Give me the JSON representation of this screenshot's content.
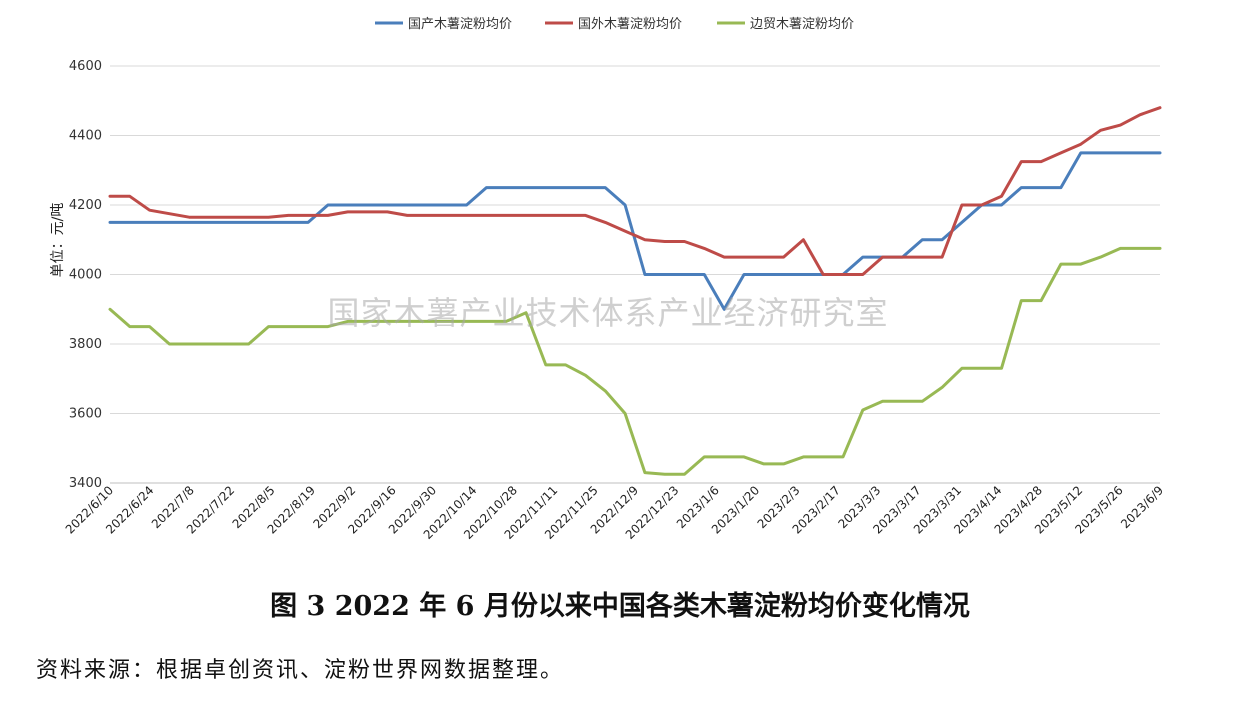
{
  "caption": "图 3   2022 年 6 月份以来中国各类木薯淀粉均价变化情况",
  "source_note": "资料来源：根据卓创资讯、淀粉世界网数据整理。",
  "watermark": "国家木薯产业技术体系产业经济研究室",
  "chart_data": {
    "type": "line",
    "title": "",
    "xlabel": "",
    "ylabel": "单位：元/吨",
    "ylim": [
      3400,
      4600
    ],
    "yticks": [
      3400,
      3600,
      3800,
      4000,
      4200,
      4400,
      4600
    ],
    "grid": "horizontal",
    "legend_position": "top",
    "x_tick_labels": [
      "2022/6/10",
      "2022/6/24",
      "2022/7/8",
      "2022/7/22",
      "2022/8/5",
      "2022/8/19",
      "2022/9/2",
      "2022/9/16",
      "2022/9/30",
      "2022/10/14",
      "2022/10/28",
      "2022/11/11",
      "2022/11/25",
      "2022/12/9",
      "2022/12/23",
      "2023/1/6",
      "2023/1/20",
      "2023/2/3",
      "2023/2/17",
      "2023/3/3",
      "2023/3/17",
      "2023/3/31",
      "2023/4/14",
      "2023/4/28",
      "2023/5/12",
      "2023/5/26",
      "2023/6/9"
    ],
    "series": [
      {
        "name": "国产木薯淀粉均价",
        "color": "#4a7ebb",
        "values": [
          4150,
          4150,
          4150,
          4150,
          4150,
          4150,
          4150,
          4150,
          4150,
          4150,
          4150,
          4200,
          4200,
          4200,
          4200,
          4200,
          4200,
          4200,
          4200,
          4250,
          4250,
          4250,
          4250,
          4250,
          4250,
          4250,
          4200,
          4000,
          4000,
          4000,
          4000,
          3900,
          4000,
          4000,
          4000,
          4000,
          4000,
          4000,
          4050,
          4050,
          4050,
          4100,
          4100,
          4150,
          4200,
          4200,
          4250,
          4250,
          4250,
          4350,
          4350,
          4350,
          4350,
          4350
        ]
      },
      {
        "name": "国外木薯淀粉均价",
        "color": "#be4b48",
        "values": [
          4225,
          4225,
          4185,
          4175,
          4165,
          4165,
          4165,
          4165,
          4165,
          4170,
          4170,
          4170,
          4180,
          4180,
          4180,
          4170,
          4170,
          4170,
          4170,
          4170,
          4170,
          4170,
          4170,
          4170,
          4170,
          4150,
          4125,
          4100,
          4095,
          4095,
          4075,
          4050,
          4050,
          4050,
          4050,
          4100,
          4000,
          4000,
          4000,
          4050,
          4050,
          4050,
          4050,
          4200,
          4200,
          4225,
          4325,
          4325,
          4350,
          4375,
          4415,
          4430,
          4460,
          4480
        ]
      },
      {
        "name": "边贸木薯淀粉均价",
        "color": "#98b954",
        "values": [
          3900,
          3850,
          3850,
          3800,
          3800,
          3800,
          3800,
          3800,
          3850,
          3850,
          3850,
          3850,
          3865,
          3865,
          3865,
          3865,
          3865,
          3865,
          3865,
          3865,
          3865,
          3890,
          3740,
          3740,
          3710,
          3665,
          3600,
          3430,
          3425,
          3425,
          3475,
          3475,
          3475,
          3455,
          3455,
          3475,
          3475,
          3475,
          3610,
          3635,
          3635,
          3635,
          3675,
          3730,
          3730,
          3730,
          3925,
          3925,
          4030,
          4030,
          4050,
          4075,
          4075,
          4075
        ]
      }
    ]
  }
}
